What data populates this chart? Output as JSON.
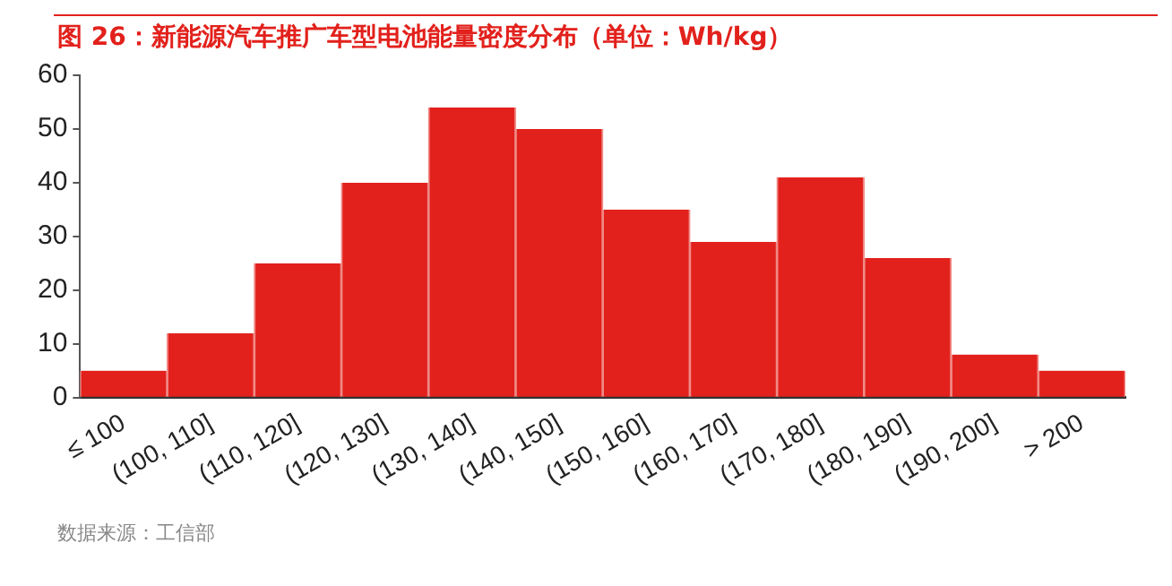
{
  "chart_data": {
    "type": "bar",
    "title": "图 26：新能源汽车推广车型电池能量密度分布（单位：Wh/kg）",
    "categories": [
      "≤ 100",
      "(100, 110]",
      "(110, 120]",
      "(120, 130]",
      "(130, 140]",
      "(140, 150]",
      "(150, 160]",
      "(160, 170]",
      "(170, 180]",
      "(180, 190]",
      "(190, 200]",
      "> 200"
    ],
    "values": [
      5,
      12,
      25,
      40,
      54,
      50,
      35,
      29,
      41,
      26,
      8,
      5
    ],
    "color": "#e2211c",
    "ylim": [
      0,
      60
    ],
    "yticks": [
      0,
      10,
      20,
      30,
      40,
      50,
      60
    ],
    "grid": false,
    "legend": false,
    "annotations": [
      "数据来源：工信部"
    ]
  }
}
